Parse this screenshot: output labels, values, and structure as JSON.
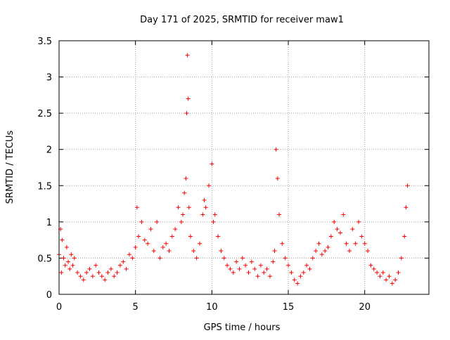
{
  "chart_data": {
    "type": "scatter",
    "title": "Day 171 of 2025, SRMTID for receiver maw1",
    "xlabel": "GPS time / hours",
    "ylabel": "SRMTID / TECUs",
    "xlim": [
      0,
      24.2
    ],
    "ylim": [
      0,
      3.5
    ],
    "x_ticks": [
      0,
      5,
      10,
      15,
      20
    ],
    "y_ticks": [
      0,
      0.5,
      1,
      1.5,
      2,
      2.5,
      3,
      3.5
    ],
    "x_tick_labels": [
      "0",
      "5",
      "10",
      "15",
      "20"
    ],
    "y_tick_labels": [
      "0",
      "0.5",
      "1",
      "1.5",
      "2",
      "2.5",
      "3",
      "3.5"
    ],
    "grid": true,
    "marker": "+",
    "series_color": "#ff0000",
    "series": [
      {
        "name": "maw1",
        "x": [
          0.0,
          0.1,
          0.15,
          0.2,
          0.3,
          0.4,
          0.5,
          0.6,
          0.7,
          0.8,
          0.9,
          1.0,
          1.2,
          1.4,
          1.6,
          1.8,
          2.0,
          2.2,
          2.4,
          2.6,
          2.8,
          3.0,
          3.2,
          3.4,
          3.6,
          3.8,
          4.0,
          4.2,
          4.4,
          4.6,
          4.8,
          5.0,
          5.1,
          5.2,
          5.4,
          5.6,
          5.8,
          6.0,
          6.2,
          6.4,
          6.6,
          6.8,
          7.0,
          7.2,
          7.4,
          7.6,
          7.8,
          8.0,
          8.1,
          8.2,
          8.3,
          8.35,
          8.4,
          8.45,
          8.5,
          8.6,
          8.8,
          9.0,
          9.2,
          9.4,
          9.5,
          9.6,
          9.8,
          10.0,
          10.1,
          10.2,
          10.4,
          10.6,
          10.8,
          11.0,
          11.2,
          11.4,
          11.6,
          11.8,
          12.0,
          12.2,
          12.4,
          12.6,
          12.8,
          13.0,
          13.2,
          13.4,
          13.6,
          13.8,
          14.0,
          14.1,
          14.2,
          14.3,
          14.4,
          14.6,
          14.8,
          15.0,
          15.2,
          15.4,
          15.6,
          15.8,
          16.0,
          16.2,
          16.4,
          16.6,
          16.8,
          17.0,
          17.2,
          17.4,
          17.6,
          17.8,
          18.0,
          18.2,
          18.4,
          18.6,
          18.8,
          19.0,
          19.2,
          19.4,
          19.6,
          19.8,
          20.0,
          20.2,
          20.4,
          20.6,
          20.8,
          21.0,
          21.2,
          21.4,
          21.6,
          21.8,
          22.0,
          22.2,
          22.4,
          22.6,
          22.7,
          22.8
        ],
        "values": [
          0.55,
          0.9,
          0.3,
          0.75,
          0.5,
          0.4,
          0.65,
          0.45,
          0.35,
          0.55,
          0.4,
          0.5,
          0.3,
          0.25,
          0.2,
          0.3,
          0.35,
          0.25,
          0.4,
          0.3,
          0.25,
          0.2,
          0.3,
          0.35,
          0.25,
          0.3,
          0.4,
          0.45,
          0.35,
          0.55,
          0.5,
          0.65,
          1.2,
          0.8,
          1.0,
          0.75,
          0.7,
          0.9,
          0.6,
          1.0,
          0.5,
          0.65,
          0.7,
          0.6,
          0.8,
          0.9,
          1.2,
          1.0,
          1.1,
          1.4,
          1.6,
          2.5,
          3.3,
          2.7,
          1.2,
          0.8,
          0.6,
          0.5,
          0.7,
          1.1,
          1.3,
          1.2,
          1.5,
          1.8,
          1.0,
          1.1,
          0.8,
          0.6,
          0.5,
          0.4,
          0.35,
          0.3,
          0.45,
          0.35,
          0.5,
          0.4,
          0.3,
          0.45,
          0.35,
          0.25,
          0.4,
          0.3,
          0.35,
          0.25,
          0.45,
          0.6,
          2.0,
          1.6,
          1.1,
          0.7,
          0.5,
          0.4,
          0.3,
          0.2,
          0.15,
          0.25,
          0.3,
          0.4,
          0.35,
          0.5,
          0.6,
          0.7,
          0.55,
          0.6,
          0.65,
          0.8,
          1.0,
          0.9,
          0.85,
          1.1,
          0.7,
          0.6,
          0.9,
          0.7,
          1.0,
          0.8,
          0.7,
          0.6,
          0.4,
          0.35,
          0.3,
          0.25,
          0.3,
          0.2,
          0.25,
          0.15,
          0.2,
          0.3,
          0.5,
          0.8,
          1.2,
          1.5
        ]
      }
    ]
  }
}
